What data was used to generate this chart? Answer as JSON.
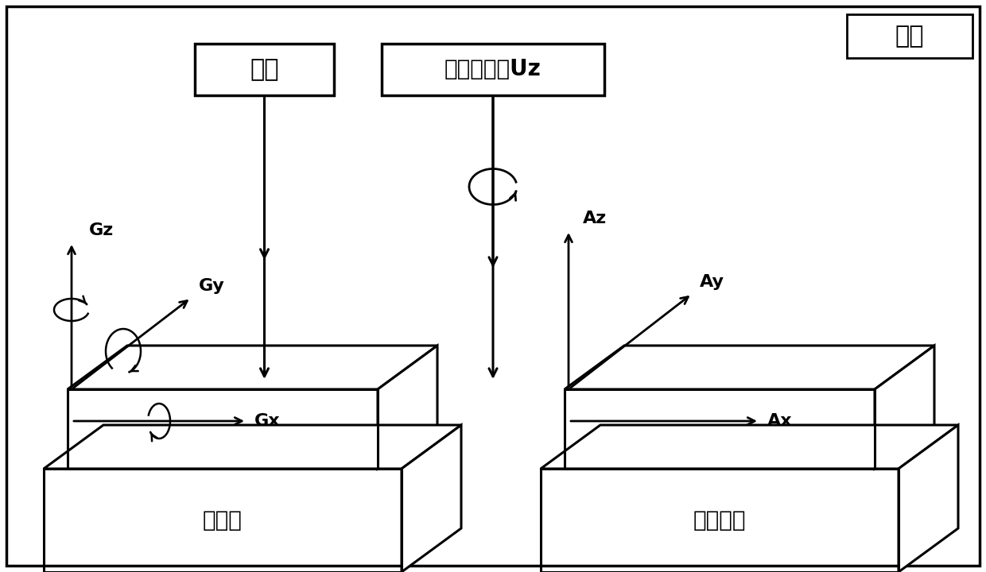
{
  "background_color": "#ffffff",
  "gyro_label": "陀螺仪",
  "accel_label": "加速度计",
  "zhongli_text": "重力",
  "xuanzhuan_text": "旋转控制量Uz",
  "xitong_text": "系统",
  "font_size_box": 20,
  "font_size_axis": 15,
  "font_size_device": 20
}
